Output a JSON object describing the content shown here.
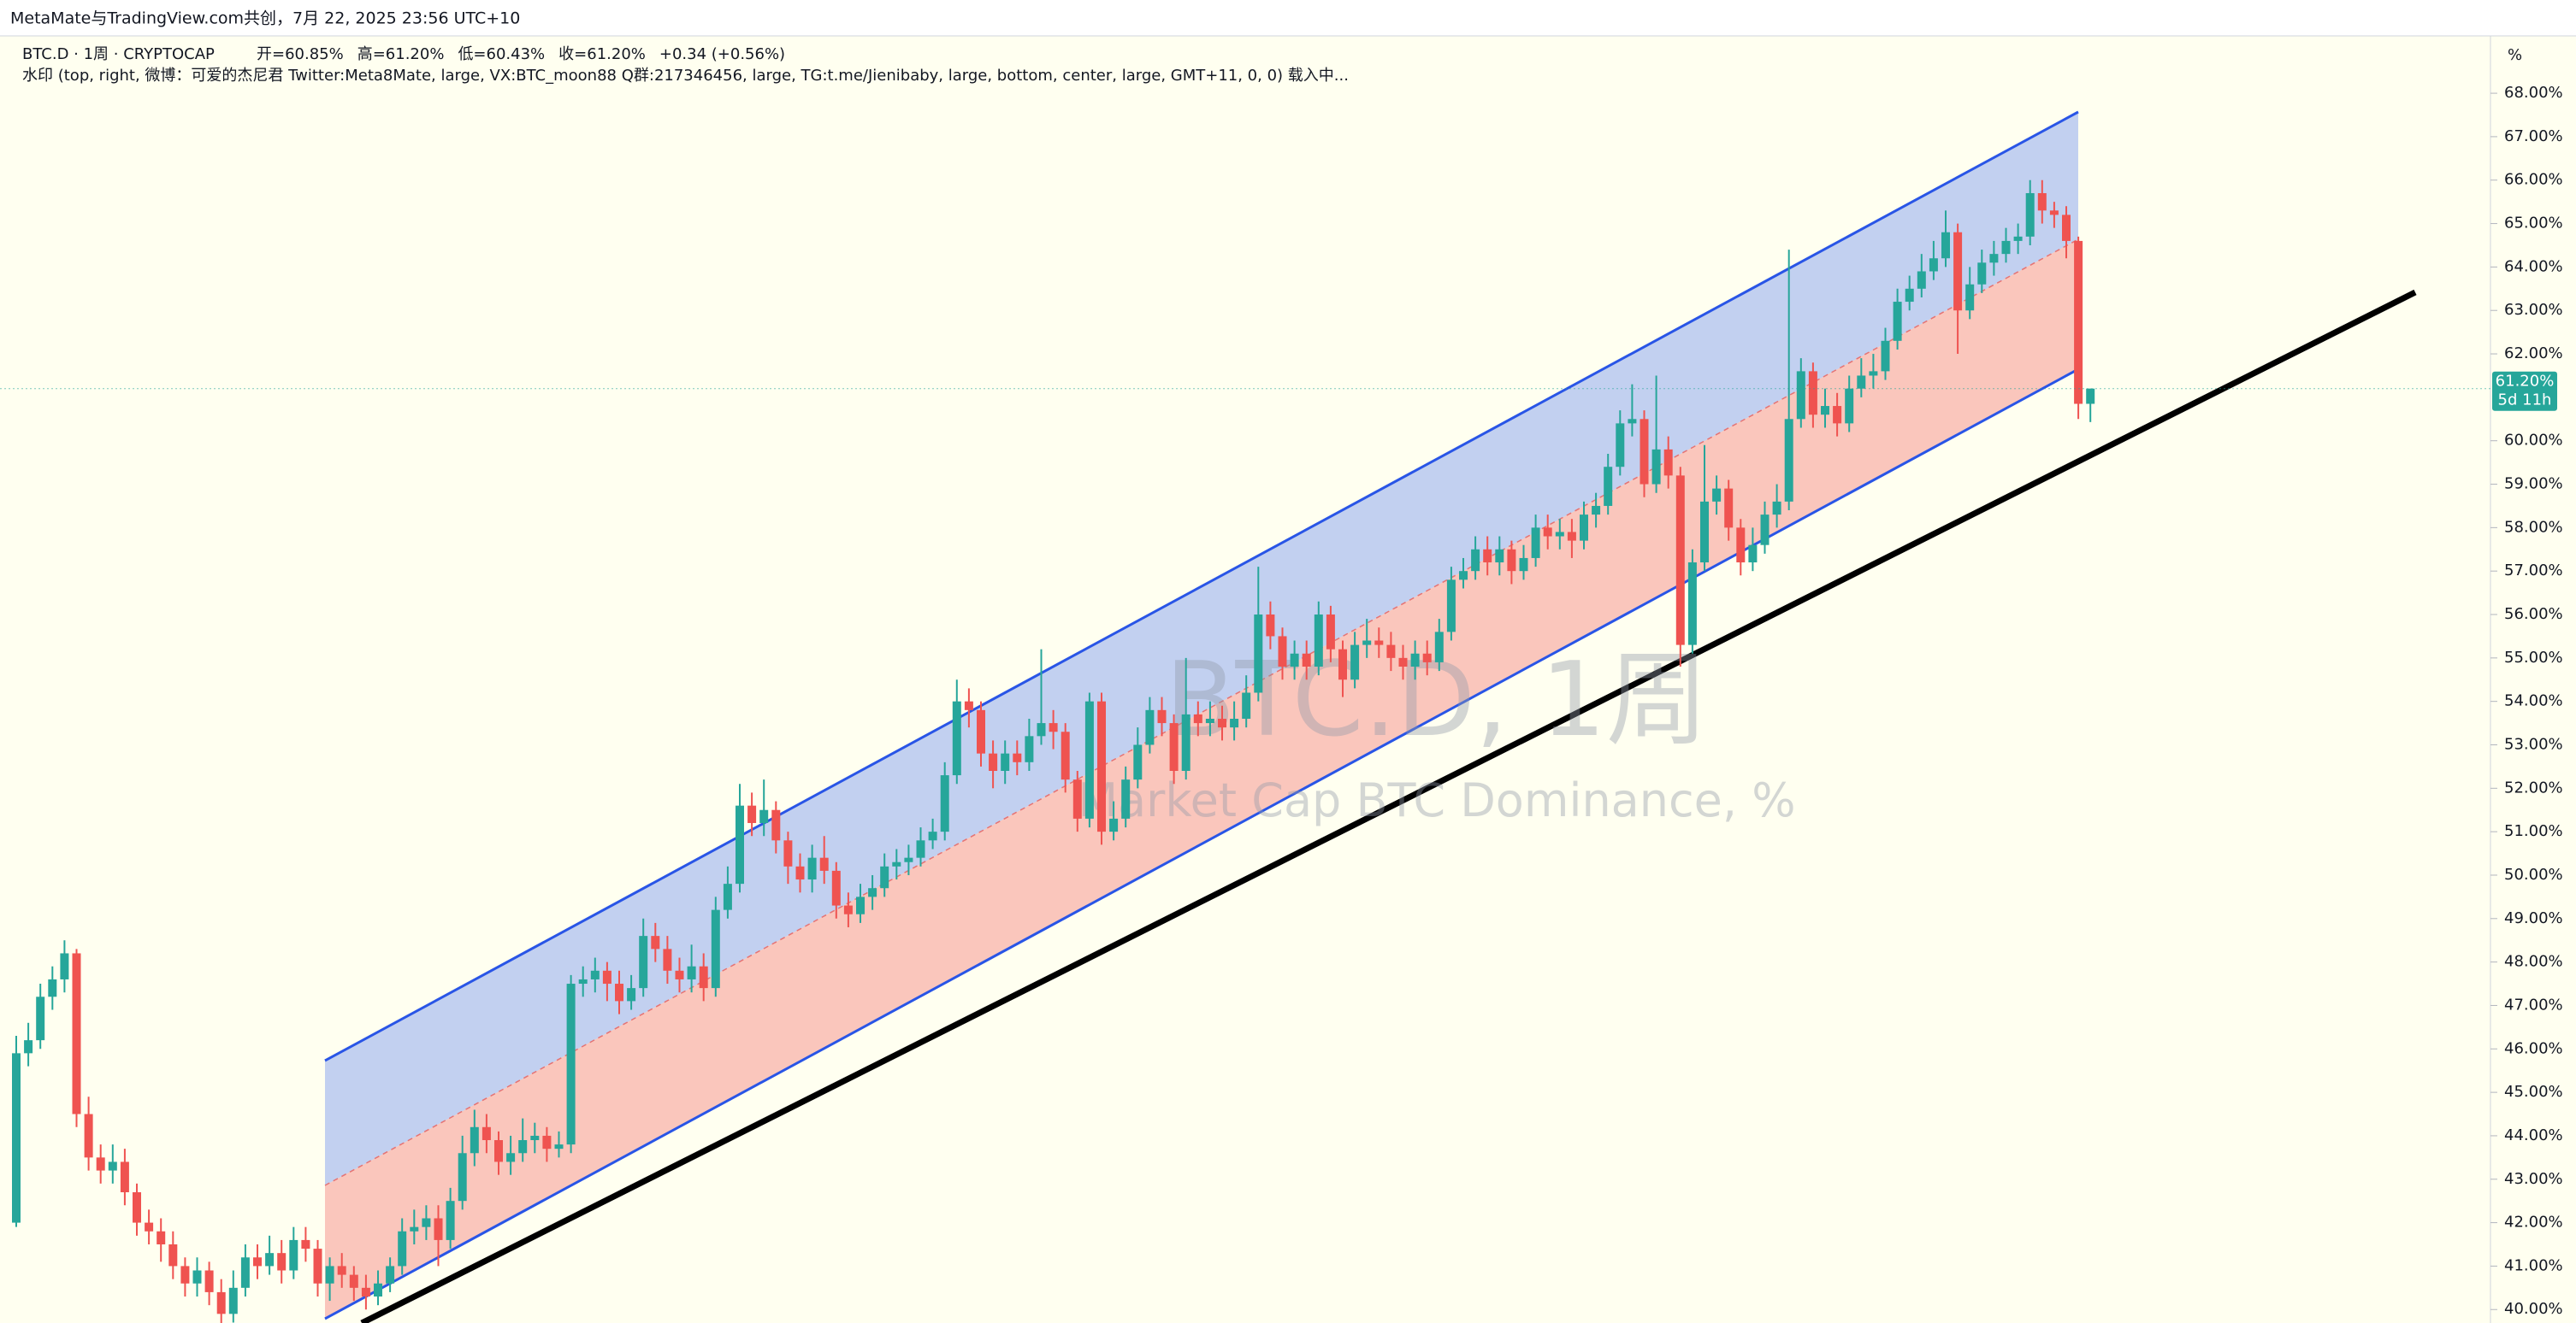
{
  "header": "MetaMate与TradingView.com共创，7月 22, 2025 23:56 UTC+10",
  "chart_data": {
    "type": "candlestick",
    "symbol": "BTC.D · 1周 · CRYPTOCAP",
    "ohlc_labels": [
      "开=60.85%",
      "高=61.20%",
      "低=60.43%",
      "收=61.20%",
      "+0.34 (+0.56%)"
    ],
    "indicator": "水印 (top, right, 微博：可爱的杰尼君 Twitter:Meta8Mate, large, VX:BTC_moon88 Q群:217346456, large, TG:t.me/Jienibaby, large, bottom, center, large, GMT+11, 0, 0) 载入中...",
    "watermark": "BTC.D, 1周",
    "watermark_subtitle": "Market Cap BTC Dominance, %",
    "axis_unit": "%",
    "last_price_label": "61.20%",
    "countdown": "5d 11h",
    "up_color": "#26a69a",
    "down_color": "#ef5350",
    "ylim": [
      39.69,
      69.32
    ],
    "yticks": [
      {
        "value": 40,
        "label": "40.00%"
      },
      {
        "value": 41,
        "label": "41.00%"
      },
      {
        "value": 42,
        "label": "42.00%"
      },
      {
        "value": 43,
        "label": "43.00%"
      },
      {
        "value": 44,
        "label": "44.00%"
      },
      {
        "value": 45,
        "label": "45.00%"
      },
      {
        "value": 46,
        "label": "46.00%"
      },
      {
        "value": 47,
        "label": "47.00%"
      },
      {
        "value": 48,
        "label": "48.00%"
      },
      {
        "value": 49,
        "label": "49.00%"
      },
      {
        "value": 50,
        "label": "50.00%"
      },
      {
        "value": 51,
        "label": "51.00%"
      },
      {
        "value": 52,
        "label": "52.00%"
      },
      {
        "value": 53,
        "label": "53.00%"
      },
      {
        "value": 54,
        "label": "54.00%"
      },
      {
        "value": 55,
        "label": "55.00%"
      },
      {
        "value": 56,
        "label": "56.00%"
      },
      {
        "value": 57,
        "label": "57.00%"
      },
      {
        "value": 58,
        "label": "58.00%"
      },
      {
        "value": 59,
        "label": "59.00%"
      },
      {
        "value": 60,
        "label": "60.00%"
      },
      {
        "value": 62,
        "label": "62.00%"
      },
      {
        "value": 63,
        "label": "63.00%"
      },
      {
        "value": 64,
        "label": "64.00%"
      },
      {
        "value": 65,
        "label": "65.00%"
      },
      {
        "value": 66,
        "label": "66.00%"
      },
      {
        "value": 67,
        "label": "67.00%"
      },
      {
        "value": 68,
        "label": "68.00%"
      }
    ],
    "open": [
      42.0,
      45.9,
      46.2,
      47.2,
      47.6,
      48.2,
      44.5,
      43.5,
      43.2,
      43.4,
      42.7,
      42.0,
      41.8,
      41.5,
      41.0,
      40.6,
      40.9,
      40.4,
      39.9,
      40.5,
      41.2,
      41.0,
      41.3,
      40.9,
      41.6,
      41.4,
      40.6,
      41.0,
      40.8,
      40.5,
      40.3,
      40.6,
      41.0,
      41.8,
      41.9,
      42.1,
      41.6,
      42.5,
      43.6,
      44.2,
      43.9,
      43.4,
      43.6,
      43.9,
      44.0,
      43.7,
      43.8,
      47.5,
      47.6,
      47.8,
      47.5,
      47.1,
      47.4,
      48.6,
      48.3,
      47.8,
      47.6,
      47.9,
      47.4,
      49.2,
      49.8,
      51.6,
      51.2,
      51.5,
      50.8,
      50.2,
      49.9,
      50.4,
      50.1,
      49.3,
      49.1,
      49.5,
      49.7,
      50.2,
      50.3,
      50.4,
      50.8,
      51.0,
      52.3,
      54.0,
      53.8,
      52.8,
      52.4,
      52.8,
      52.6,
      53.2,
      53.5,
      53.3,
      52.2,
      51.3,
      54.0,
      51.0,
      51.3,
      52.2,
      53.0,
      53.8,
      53.5,
      52.4,
      53.7,
      53.5,
      53.6,
      53.4,
      53.6,
      54.2,
      56.0,
      55.5,
      54.8,
      55.1,
      54.8,
      56.0,
      55.2,
      54.5,
      55.3,
      55.4,
      55.3,
      55.0,
      54.8,
      55.1,
      54.9,
      55.6,
      56.8,
      57.0,
      57.5,
      57.2,
      57.5,
      57.0,
      57.3,
      58.0,
      57.8,
      57.9,
      57.7,
      58.3,
      58.5,
      59.4,
      60.4,
      60.5,
      59.0,
      59.8,
      59.2,
      55.3,
      57.2,
      58.6,
      58.9,
      58.0,
      57.2,
      57.6,
      58.3,
      58.6,
      60.5,
      61.6,
      60.6,
      60.8,
      60.4,
      61.2,
      61.5,
      61.6,
      62.3,
      63.2,
      63.5,
      63.9,
      64.2,
      64.8,
      63.0,
      63.6,
      64.1,
      64.3,
      64.6,
      64.7,
      65.7,
      65.3,
      65.2,
      64.6,
      60.85
    ],
    "high": [
      46.3,
      46.6,
      47.5,
      47.9,
      48.5,
      48.3,
      44.9,
      43.8,
      43.8,
      43.7,
      42.9,
      42.3,
      42.1,
      41.8,
      41.2,
      41.2,
      41.1,
      40.7,
      40.9,
      41.5,
      41.5,
      41.7,
      41.6,
      41.9,
      41.9,
      41.6,
      41.2,
      41.3,
      41.0,
      40.8,
      40.9,
      41.2,
      42.1,
      42.3,
      42.4,
      42.4,
      42.8,
      44.0,
      44.6,
      44.5,
      44.1,
      44.0,
      44.4,
      44.3,
      44.2,
      44.1,
      47.7,
      47.9,
      48.1,
      48.0,
      47.8,
      47.7,
      49.0,
      48.9,
      48.6,
      48.1,
      48.4,
      48.2,
      49.5,
      50.2,
      52.1,
      51.9,
      52.2,
      51.7,
      51.0,
      50.5,
      50.7,
      50.9,
      50.3,
      49.6,
      49.8,
      50.0,
      50.5,
      50.6,
      50.7,
      51.1,
      51.3,
      52.6,
      54.5,
      54.3,
      54.0,
      53.1,
      53.1,
      53.1,
      53.6,
      55.2,
      53.8,
      53.5,
      52.4,
      54.2,
      54.2,
      51.7,
      52.5,
      53.4,
      54.1,
      54.1,
      53.7,
      55.0,
      54.0,
      54.0,
      53.9,
      54.0,
      54.6,
      57.1,
      56.3,
      55.7,
      55.4,
      55.4,
      56.3,
      56.2,
      55.4,
      55.6,
      55.9,
      55.7,
      55.6,
      55.3,
      55.4,
      55.4,
      55.9,
      57.1,
      57.3,
      57.8,
      57.8,
      57.8,
      57.7,
      57.6,
      58.3,
      58.3,
      58.2,
      58.2,
      58.6,
      58.8,
      59.7,
      60.7,
      61.3,
      60.7,
      61.5,
      60.1,
      59.4,
      57.5,
      59.9,
      59.2,
      59.1,
      58.2,
      58.0,
      58.6,
      59.0,
      64.4,
      61.9,
      61.8,
      61.2,
      61.1,
      61.5,
      61.9,
      62.0,
      62.6,
      63.5,
      63.8,
      64.3,
      64.6,
      65.3,
      65.0,
      64.0,
      64.4,
      64.6,
      64.9,
      65.0,
      66.0,
      66.0,
      65.5,
      65.4,
      64.7,
      61.2
    ],
    "low": [
      41.9,
      45.6,
      46.0,
      46.9,
      47.3,
      44.2,
      43.2,
      42.9,
      42.9,
      42.4,
      41.7,
      41.5,
      41.1,
      40.7,
      40.3,
      40.3,
      40.1,
      39.6,
      39.7,
      40.3,
      40.7,
      40.8,
      40.6,
      40.7,
      41.1,
      40.3,
      40.2,
      40.5,
      40.2,
      40.0,
      40.1,
      40.4,
      40.8,
      41.5,
      41.6,
      41.0,
      41.4,
      42.3,
      43.3,
      43.6,
      43.1,
      43.1,
      43.4,
      43.6,
      43.4,
      43.5,
      43.6,
      47.2,
      47.3,
      47.1,
      46.8,
      46.9,
      47.2,
      48.0,
      47.5,
      47.3,
      47.3,
      47.1,
      47.2,
      49.0,
      49.6,
      50.9,
      50.9,
      50.5,
      49.8,
      49.6,
      49.6,
      49.8,
      49.0,
      48.8,
      48.9,
      49.2,
      49.5,
      49.9,
      50.0,
      50.2,
      50.6,
      50.8,
      52.1,
      53.4,
      52.5,
      52.0,
      52.1,
      52.3,
      52.4,
      53.0,
      52.9,
      51.9,
      51.0,
      51.1,
      50.7,
      50.8,
      51.1,
      52.0,
      52.8,
      53.2,
      52.1,
      52.2,
      53.2,
      53.2,
      53.1,
      53.1,
      53.4,
      54.0,
      55.2,
      54.5,
      54.5,
      54.5,
      54.6,
      54.9,
      54.1,
      54.3,
      55.0,
      55.0,
      54.7,
      54.5,
      54.5,
      54.6,
      54.7,
      55.4,
      56.6,
      56.8,
      56.9,
      56.9,
      56.7,
      56.8,
      57.1,
      57.5,
      57.5,
      57.3,
      57.5,
      58.0,
      58.3,
      59.2,
      60.1,
      58.7,
      58.8,
      58.9,
      54.8,
      55.1,
      57.0,
      58.3,
      57.7,
      56.9,
      57.0,
      57.4,
      58.0,
      58.4,
      60.3,
      60.3,
      60.3,
      60.1,
      60.2,
      61.0,
      61.2,
      61.4,
      62.1,
      63.0,
      63.3,
      63.7,
      64.0,
      62.0,
      62.8,
      63.4,
      63.8,
      64.1,
      64.3,
      64.5,
      65.0,
      64.9,
      64.2,
      60.5,
      60.43
    ],
    "close": [
      45.9,
      46.2,
      47.2,
      47.6,
      48.2,
      44.5,
      43.5,
      43.2,
      43.4,
      42.7,
      42.0,
      41.8,
      41.5,
      41.0,
      40.6,
      40.9,
      40.4,
      39.9,
      40.5,
      41.2,
      41.0,
      41.3,
      40.9,
      41.6,
      41.4,
      40.6,
      41.0,
      40.8,
      40.5,
      40.3,
      40.6,
      41.0,
      41.8,
      41.9,
      42.1,
      41.6,
      42.5,
      43.6,
      44.2,
      43.9,
      43.4,
      43.6,
      43.9,
      44.0,
      43.7,
      43.8,
      47.5,
      47.6,
      47.8,
      47.5,
      47.1,
      47.4,
      48.6,
      48.3,
      47.8,
      47.6,
      47.9,
      47.4,
      49.2,
      49.8,
      51.6,
      51.2,
      51.5,
      50.8,
      50.2,
      49.9,
      50.4,
      50.1,
      49.3,
      49.1,
      49.5,
      49.7,
      50.2,
      50.3,
      50.4,
      50.8,
      51.0,
      52.3,
      54.0,
      53.8,
      52.8,
      52.4,
      52.8,
      52.6,
      53.2,
      53.5,
      53.3,
      52.2,
      51.3,
      54.0,
      51.0,
      51.3,
      52.2,
      53.0,
      53.8,
      53.5,
      52.4,
      53.7,
      53.5,
      53.6,
      53.4,
      53.6,
      54.2,
      56.0,
      55.5,
      54.8,
      55.1,
      54.8,
      56.0,
      55.2,
      54.5,
      55.3,
      55.4,
      55.3,
      55.0,
      54.8,
      55.1,
      54.9,
      55.6,
      56.8,
      57.0,
      57.5,
      57.2,
      57.5,
      57.0,
      57.3,
      58.0,
      57.8,
      57.9,
      57.7,
      58.3,
      58.5,
      59.4,
      60.4,
      60.5,
      59.0,
      59.8,
      59.2,
      55.3,
      57.2,
      58.6,
      58.9,
      58.0,
      57.2,
      57.6,
      58.3,
      58.6,
      60.5,
      61.6,
      60.6,
      60.8,
      60.4,
      61.2,
      61.5,
      61.6,
      62.3,
      63.2,
      63.5,
      63.9,
      64.2,
      64.8,
      63.0,
      63.6,
      64.1,
      64.3,
      64.6,
      64.7,
      65.7,
      65.3,
      65.2,
      64.6,
      60.85,
      61.2
    ]
  }
}
